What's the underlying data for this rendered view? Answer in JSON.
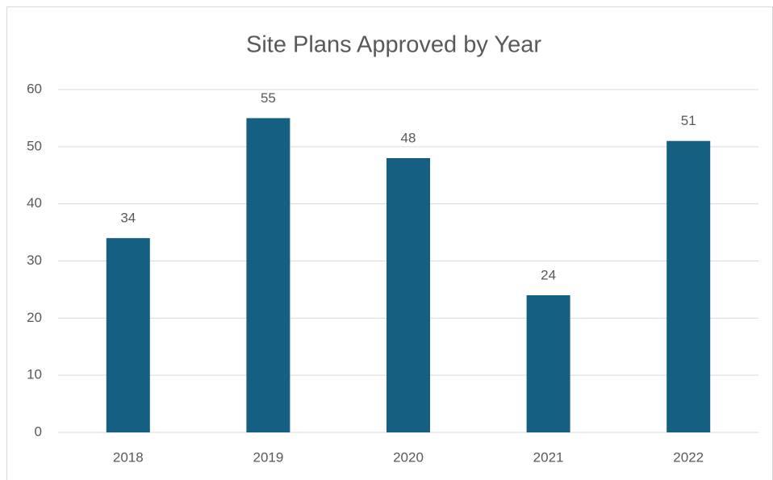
{
  "chart_data": {
    "type": "bar",
    "title": "Site Plans Approved by Year",
    "categories": [
      "2018",
      "2019",
      "2020",
      "2021",
      "2022"
    ],
    "values": [
      34,
      55,
      48,
      24,
      51
    ],
    "color": "#155f82",
    "ylim": [
      0,
      60
    ],
    "yticks": [
      0,
      10,
      20,
      30,
      40,
      50,
      60
    ],
    "grid": true
  }
}
